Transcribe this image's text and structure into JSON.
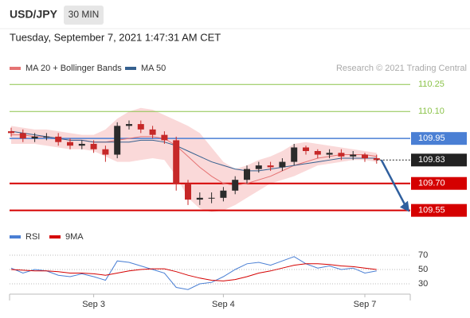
{
  "header": {
    "symbol": "USD/JPY",
    "interval": "30 MIN",
    "date": "Tuesday, September 7, 2021 1:47:31 AM CET",
    "credit": "Research © 2021 Trading Central"
  },
  "chart_data": [
    {
      "type": "candlestick",
      "categories": [
        null,
        null,
        null,
        null,
        null,
        null,
        null,
        "Sep 3",
        null,
        null,
        null,
        null,
        null,
        null,
        null,
        null,
        null,
        null,
        "Sep 4",
        null,
        null,
        null,
        null,
        null,
        null,
        null,
        null,
        null,
        null,
        null,
        "Sep 7",
        null
      ],
      "open": [
        109.99,
        109.98,
        109.95,
        109.96,
        109.96,
        109.93,
        109.91,
        109.92,
        109.89,
        109.86,
        110.02,
        110.03,
        110.0,
        109.97,
        109.94,
        109.7,
        109.61,
        109.62,
        109.62,
        109.66,
        109.72,
        109.78,
        109.8,
        109.79,
        109.82,
        109.9,
        109.88,
        109.86,
        109.87,
        109.85,
        109.86,
        109.84
      ],
      "high": [
        110.01,
        110.0,
        109.98,
        109.98,
        109.98,
        109.95,
        109.94,
        109.94,
        109.91,
        110.04,
        110.05,
        110.05,
        110.02,
        109.99,
        109.96,
        109.72,
        109.65,
        109.65,
        109.68,
        109.74,
        109.8,
        109.82,
        109.82,
        109.84,
        109.92,
        109.91,
        109.89,
        109.89,
        109.89,
        109.88,
        109.87,
        109.86
      ],
      "low": [
        109.96,
        109.93,
        109.93,
        109.94,
        109.91,
        109.89,
        109.89,
        109.87,
        109.82,
        109.84,
        110.0,
        109.98,
        109.95,
        109.92,
        109.66,
        109.58,
        109.58,
        109.59,
        109.6,
        109.64,
        109.7,
        109.76,
        109.77,
        109.77,
        109.8,
        109.86,
        109.84,
        109.84,
        109.83,
        109.83,
        109.82,
        109.81
      ],
      "close": [
        109.98,
        109.95,
        109.96,
        109.96,
        109.93,
        109.91,
        109.92,
        109.89,
        109.86,
        110.02,
        110.03,
        110.0,
        109.97,
        109.94,
        109.7,
        109.61,
        109.62,
        109.62,
        109.66,
        109.72,
        109.78,
        109.8,
        109.79,
        109.82,
        109.9,
        109.88,
        109.86,
        109.87,
        109.85,
        109.86,
        109.84,
        109.83
      ],
      "up_color": "#2b2b2b",
      "down_color": "#c62828",
      "series": [
        {
          "name": "MA 20 + Bollinger Bands",
          "color": "#e57373",
          "band_color": "#f9cfcf",
          "values": [
            109.97,
            109.97,
            109.96,
            109.96,
            109.95,
            109.94,
            109.94,
            109.93,
            109.93,
            109.94,
            109.95,
            109.96,
            109.96,
            109.95,
            109.91,
            109.85,
            109.79,
            109.74,
            109.7,
            109.69,
            109.7,
            109.72,
            109.74,
            109.77,
            109.8,
            109.82,
            109.84,
            109.85,
            109.86,
            109.86,
            109.86,
            109.85
          ],
          "upper": [
            110.02,
            110.01,
            110.0,
            110.0,
            109.99,
            109.98,
            109.97,
            109.97,
            110.0,
            110.06,
            110.1,
            110.12,
            110.11,
            110.08,
            110.05,
            110.02,
            109.98,
            109.9,
            109.82,
            109.78,
            109.8,
            109.83,
            109.85,
            109.88,
            109.92,
            109.93,
            109.92,
            109.91,
            109.9,
            109.89,
            109.88,
            109.87
          ],
          "lower": [
            109.92,
            109.92,
            109.92,
            109.91,
            109.9,
            109.89,
            109.89,
            109.88,
            109.85,
            109.82,
            109.82,
            109.83,
            109.84,
            109.83,
            109.74,
            109.62,
            109.56,
            109.54,
            109.55,
            109.58,
            109.62,
            109.66,
            109.7,
            109.72,
            109.74,
            109.77,
            109.8,
            109.81,
            109.82,
            109.83,
            109.83,
            109.82
          ]
        },
        {
          "name": "MA 50",
          "color": "#35608f",
          "values": [
            109.99,
            109.98,
            109.97,
            109.96,
            109.95,
            109.94,
            109.94,
            109.93,
            109.93,
            109.93,
            109.93,
            109.94,
            109.94,
            109.93,
            109.91,
            109.88,
            109.85,
            109.82,
            109.8,
            109.78,
            109.77,
            109.77,
            109.78,
            109.79,
            109.8,
            109.81,
            109.82,
            109.83,
            109.84,
            109.84,
            109.84,
            109.84
          ]
        }
      ],
      "levels": [
        {
          "value": 110.25,
          "color": "#8bc34a",
          "width": 1,
          "boxed": false
        },
        {
          "value": 110.1,
          "label": "110.10",
          "color": "#8bc34a",
          "width": 1,
          "boxed": false
        },
        {
          "value": 109.95,
          "color": "#4a7fd4",
          "width": 1.5,
          "boxed": true
        },
        {
          "value": 109.7,
          "label": "109.70",
          "color": "#d50000",
          "width": 2,
          "boxed": true
        },
        {
          "value": 109.55,
          "color": "#d50000",
          "width": 2,
          "boxed": true
        }
      ],
      "current": 109.83,
      "current_color": "#222",
      "arrow_target": 109.55,
      "arrow_color": "#2f5f9e",
      "ylim": [
        109.46,
        110.3
      ]
    },
    {
      "type": "line",
      "series": [
        {
          "name": "RSI",
          "color": "#4a7fd4",
          "values": [
            52,
            45,
            50,
            48,
            42,
            40,
            44,
            40,
            35,
            62,
            60,
            55,
            50,
            45,
            25,
            22,
            30,
            32,
            40,
            50,
            58,
            60,
            56,
            62,
            68,
            58,
            52,
            55,
            50,
            52,
            45,
            48
          ]
        },
        {
          "name": "9MA",
          "color": "#d50000",
          "values": [
            50,
            49,
            48,
            48,
            47,
            45,
            45,
            44,
            42,
            45,
            48,
            50,
            51,
            51,
            47,
            42,
            38,
            35,
            34,
            36,
            40,
            45,
            48,
            52,
            56,
            58,
            58,
            57,
            55,
            54,
            52,
            50
          ]
        }
      ],
      "ylim": [
        20,
        80
      ],
      "yticks": [
        30,
        50,
        70
      ],
      "grid": true
    }
  ]
}
